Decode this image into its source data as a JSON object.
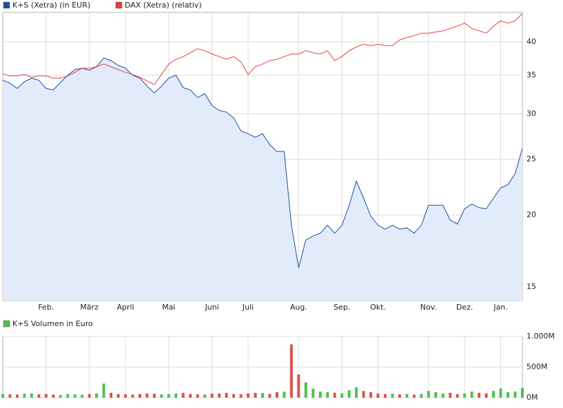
{
  "chart_data": [
    {
      "type": "line",
      "log_scale": true,
      "grid": true,
      "categories": [
        null,
        null,
        null,
        null,
        null,
        null,
        "Feb.",
        null,
        null,
        null,
        null,
        null,
        "März",
        null,
        null,
        null,
        null,
        "April",
        null,
        null,
        null,
        null,
        null,
        "Mai",
        null,
        null,
        null,
        null,
        null,
        "Juni",
        null,
        null,
        null,
        null,
        "Juli",
        null,
        null,
        null,
        null,
        null,
        null,
        "Aug.",
        null,
        null,
        null,
        null,
        null,
        "Sep.",
        null,
        null,
        null,
        null,
        "Okt.",
        null,
        null,
        null,
        null,
        null,
        null,
        "Nov.",
        null,
        null,
        null,
        null,
        "Dez.",
        null,
        null,
        null,
        null,
        "Jan.",
        null,
        null,
        null
      ],
      "ylim": [
        14.2,
        45
      ],
      "yticks": [
        15,
        20,
        25,
        30,
        35,
        40
      ],
      "series": [
        {
          "name": "K+S (Xetra) (in EUR)",
          "color": "#1b4f9e",
          "fill": "#e1ebfa",
          "values": [
            34.3,
            33.9,
            33.2,
            34.1,
            34.6,
            34.3,
            33.2,
            33.0,
            34.0,
            35.0,
            35.8,
            36.0,
            35.7,
            36.2,
            37.5,
            37.1,
            36.4,
            36.0,
            35.0,
            34.6,
            33.5,
            32.6,
            33.5,
            34.6,
            35.0,
            33.3,
            33.0,
            32.0,
            32.5,
            31.0,
            30.4,
            30.2,
            29.5,
            28.0,
            27.7,
            27.3,
            27.7,
            26.5,
            25.8,
            25.8,
            19.2,
            16.2,
            18.1,
            18.4,
            18.6,
            19.2,
            18.6,
            19.2,
            20.8,
            22.9,
            21.4,
            19.9,
            19.2,
            18.9,
            19.2,
            18.9,
            19.0,
            18.6,
            19.2,
            20.8,
            20.8,
            20.8,
            19.6,
            19.3,
            20.5,
            20.9,
            20.6,
            20.5,
            21.4,
            22.3,
            22.6,
            23.6,
            26.1
          ]
        },
        {
          "name": "DAX (Xetra) (relativ)",
          "color": "#e8403a",
          "values": [
            35.2,
            34.9,
            34.9,
            35.1,
            34.7,
            34.9,
            34.9,
            34.6,
            34.6,
            34.9,
            35.4,
            36.0,
            36.0,
            36.2,
            36.6,
            36.2,
            35.8,
            35.4,
            35.1,
            34.7,
            34.2,
            33.7,
            35.1,
            36.6,
            37.3,
            37.7,
            38.3,
            38.9,
            38.6,
            38.1,
            37.7,
            37.3,
            37.7,
            36.9,
            35.1,
            36.2,
            36.6,
            37.1,
            37.3,
            37.7,
            38.1,
            38.1,
            38.6,
            38.3,
            38.1,
            38.6,
            37.1,
            37.7,
            38.6,
            39.2,
            39.6,
            39.4,
            39.6,
            39.4,
            39.4,
            40.3,
            40.7,
            41.0,
            41.4,
            41.4,
            41.6,
            41.8,
            42.2,
            42.6,
            43.1,
            42.2,
            41.8,
            41.4,
            42.6,
            43.5,
            43.1,
            43.5,
            44.8
          ]
        }
      ]
    },
    {
      "type": "bar",
      "grid": true,
      "up_color": "#4dc24d",
      "down_color": "#d9534f",
      "ylim": [
        0,
        1000
      ],
      "yticks": [
        {
          "value": 0,
          "label": "0M"
        },
        {
          "value": 500,
          "label": "500M"
        },
        {
          "value": 1000,
          "label": "1.000M"
        }
      ],
      "series": [
        {
          "name": "K+S Volumen in Euro",
          "color": "#4dc24d",
          "values": [
            60,
            55,
            50,
            65,
            70,
            55,
            60,
            50,
            45,
            60,
            55,
            50,
            60,
            70,
            230,
            80,
            60,
            55,
            50,
            60,
            70,
            65,
            55,
            60,
            70,
            80,
            60,
            55,
            50,
            65,
            70,
            80,
            60,
            55,
            70,
            80,
            75,
            60,
            90,
            100,
            870,
            380,
            250,
            150,
            100,
            90,
            80,
            70,
            120,
            170,
            110,
            90,
            70,
            60,
            65,
            55,
            60,
            50,
            60,
            110,
            90,
            70,
            80,
            60,
            70,
            100,
            80,
            70,
            110,
            150,
            90,
            100,
            160
          ]
        }
      ]
    }
  ]
}
